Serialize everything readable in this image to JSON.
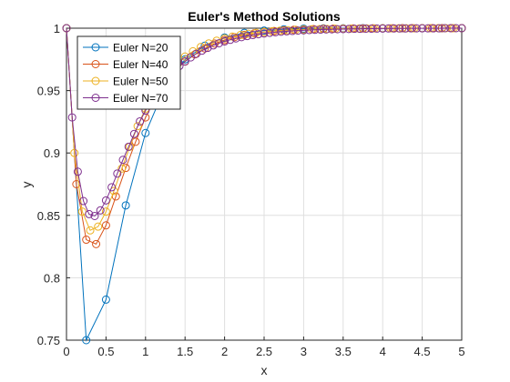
{
  "chart_data": {
    "type": "line",
    "title": "Euler's Method Solutions",
    "xlabel": "x",
    "ylabel": "y",
    "xlim": [
      0,
      5
    ],
    "ylim": [
      0.75,
      1
    ],
    "xticks": [
      0,
      0.5,
      1,
      1.5,
      2,
      2.5,
      3,
      3.5,
      4,
      4.5,
      5
    ],
    "xtick_labels": [
      "0",
      "0.5",
      "1",
      "1.5",
      "2",
      "2.5",
      "3",
      "3.5",
      "4",
      "4.5",
      "5"
    ],
    "yticks": [
      0.75,
      0.8,
      0.85,
      0.9,
      0.95,
      1
    ],
    "ytick_labels": [
      "0.75",
      "0.8",
      "0.85",
      "0.9",
      "0.95",
      "1"
    ],
    "grid": true,
    "legend_position": "top-left",
    "series": [
      {
        "name": "Euler N=20",
        "color": "#0072BD",
        "x": [
          0,
          0.25,
          0.5,
          0.75,
          1,
          1.25,
          1.5,
          1.75,
          2,
          2.25,
          2.5,
          2.75,
          3,
          3.25,
          3.5,
          3.75,
          4,
          4.25,
          4.5,
          4.75,
          5
        ],
        "y": [
          1,
          0.75,
          0.7825,
          0.858,
          0.916,
          0.953,
          0.975,
          0.986,
          0.9925,
          0.9963,
          0.9981,
          0.9991,
          0.9996,
          0.9998,
          0.9999,
          1,
          1,
          1,
          1,
          1,
          1
        ]
      },
      {
        "name": "Euler N=40",
        "color": "#D95319",
        "x": [
          0,
          0.125,
          0.25,
          0.375,
          0.5,
          0.625,
          0.75,
          0.875,
          1,
          1.125,
          1.25,
          1.375,
          1.5,
          1.625,
          1.75,
          1.875,
          2,
          2.125,
          2.25,
          2.375,
          2.5,
          2.625,
          2.75,
          2.875,
          3,
          3.125,
          3.25,
          3.375,
          3.5,
          3.625,
          3.75,
          3.875,
          4,
          4.125,
          4.25,
          4.375,
          4.5,
          4.625,
          4.75,
          4.875,
          5
        ],
        "y": [
          1,
          0.875,
          0.8305,
          0.827,
          0.842,
          0.8652,
          0.888,
          0.909,
          0.9285,
          0.944,
          0.956,
          0.966,
          0.9733,
          0.979,
          0.9838,
          0.9877,
          0.9905,
          0.9928,
          0.9946,
          0.9959,
          0.9969,
          0.9977,
          0.9983,
          0.9987,
          0.999,
          0.9993,
          0.9995,
          0.9996,
          0.9997,
          0.9998,
          0.9998,
          0.9999,
          0.9999,
          0.9999,
          1,
          1,
          1,
          1,
          1,
          1,
          1
        ]
      },
      {
        "name": "Euler N=50",
        "color": "#EDB120",
        "x": [
          0,
          0.1,
          0.2,
          0.3,
          0.4,
          0.5,
          0.6,
          0.7,
          0.8,
          0.9,
          1,
          1.1,
          1.2,
          1.3,
          1.4,
          1.5,
          1.6,
          1.7,
          1.8,
          1.9,
          2,
          2.1,
          2.2,
          2.3,
          2.4,
          2.5,
          2.6,
          2.7,
          2.8,
          2.9,
          3,
          3.1,
          3.2,
          3.3,
          3.4,
          3.5,
          3.6,
          3.7,
          3.8,
          3.9,
          4,
          4.1,
          4.2,
          4.3,
          4.4,
          4.5,
          4.6,
          4.7,
          4.8,
          4.9,
          5
        ],
        "y": [
          1,
          0.9,
          0.853,
          0.838,
          0.841,
          0.853,
          0.8695,
          0.8875,
          0.905,
          0.9215,
          0.9355,
          0.9475,
          0.9575,
          0.9655,
          0.972,
          0.9773,
          0.9815,
          0.985,
          0.9878,
          0.99,
          0.9918,
          0.9933,
          0.9945,
          0.9955,
          0.9963,
          0.997,
          0.9975,
          0.998,
          0.9984,
          0.9987,
          0.9989,
          0.9991,
          0.9993,
          0.9994,
          0.9995,
          0.9996,
          0.9997,
          0.9997,
          0.9998,
          0.9998,
          0.9999,
          0.9999,
          0.9999,
          0.9999,
          0.9999,
          1,
          1,
          1,
          1,
          1,
          1
        ]
      },
      {
        "name": "Euler N=70",
        "color": "#7E2F8E",
        "x": [
          0,
          0.0714,
          0.1429,
          0.2143,
          0.2857,
          0.3571,
          0.4286,
          0.5,
          0.5714,
          0.6429,
          0.7143,
          0.7857,
          0.8571,
          0.9286,
          1,
          1.0714,
          1.1429,
          1.2143,
          1.2857,
          1.3571,
          1.4286,
          1.5,
          1.5714,
          1.6429,
          1.7143,
          1.7857,
          1.8571,
          1.9286,
          2,
          2.0714,
          2.1429,
          2.2143,
          2.2857,
          2.3571,
          2.4286,
          2.5,
          2.5714,
          2.6429,
          2.7143,
          2.7857,
          2.8571,
          2.9286,
          3,
          3.0714,
          3.1429,
          3.2143,
          3.2857,
          3.3571,
          3.4286,
          3.5,
          3.5714,
          3.6429,
          3.7143,
          3.7857,
          3.8571,
          3.9286,
          4,
          4.0714,
          4.1429,
          4.2143,
          4.2857,
          4.3571,
          4.4286,
          4.5,
          4.5714,
          4.6429,
          4.7143,
          4.7857,
          4.8571,
          4.9286,
          5
        ],
        "y": [
          1,
          0.9285,
          0.885,
          0.8615,
          0.851,
          0.8495,
          0.854,
          0.862,
          0.8725,
          0.8835,
          0.8945,
          0.905,
          0.9153,
          0.9253,
          0.934,
          0.942,
          0.949,
          0.9553,
          0.9608,
          0.9655,
          0.9697,
          0.9734,
          0.9766,
          0.9795,
          0.982,
          0.9842,
          0.9862,
          0.9879,
          0.9894,
          0.9907,
          0.9918,
          0.9928,
          0.9937,
          0.9945,
          0.9952,
          0.9958,
          0.9963,
          0.9968,
          0.9972,
          0.9975,
          0.9978,
          0.9981,
          0.9983,
          0.9985,
          0.9987,
          0.9989,
          0.999,
          0.9991,
          0.9992,
          0.9993,
          0.9994,
          0.9995,
          0.9995,
          0.9996,
          0.9996,
          0.9997,
          0.9997,
          0.9998,
          0.9998,
          0.9998,
          0.9998,
          0.9999,
          0.9999,
          0.9999,
          0.9999,
          0.9999,
          0.9999,
          1,
          1,
          1,
          1
        ]
      }
    ]
  }
}
